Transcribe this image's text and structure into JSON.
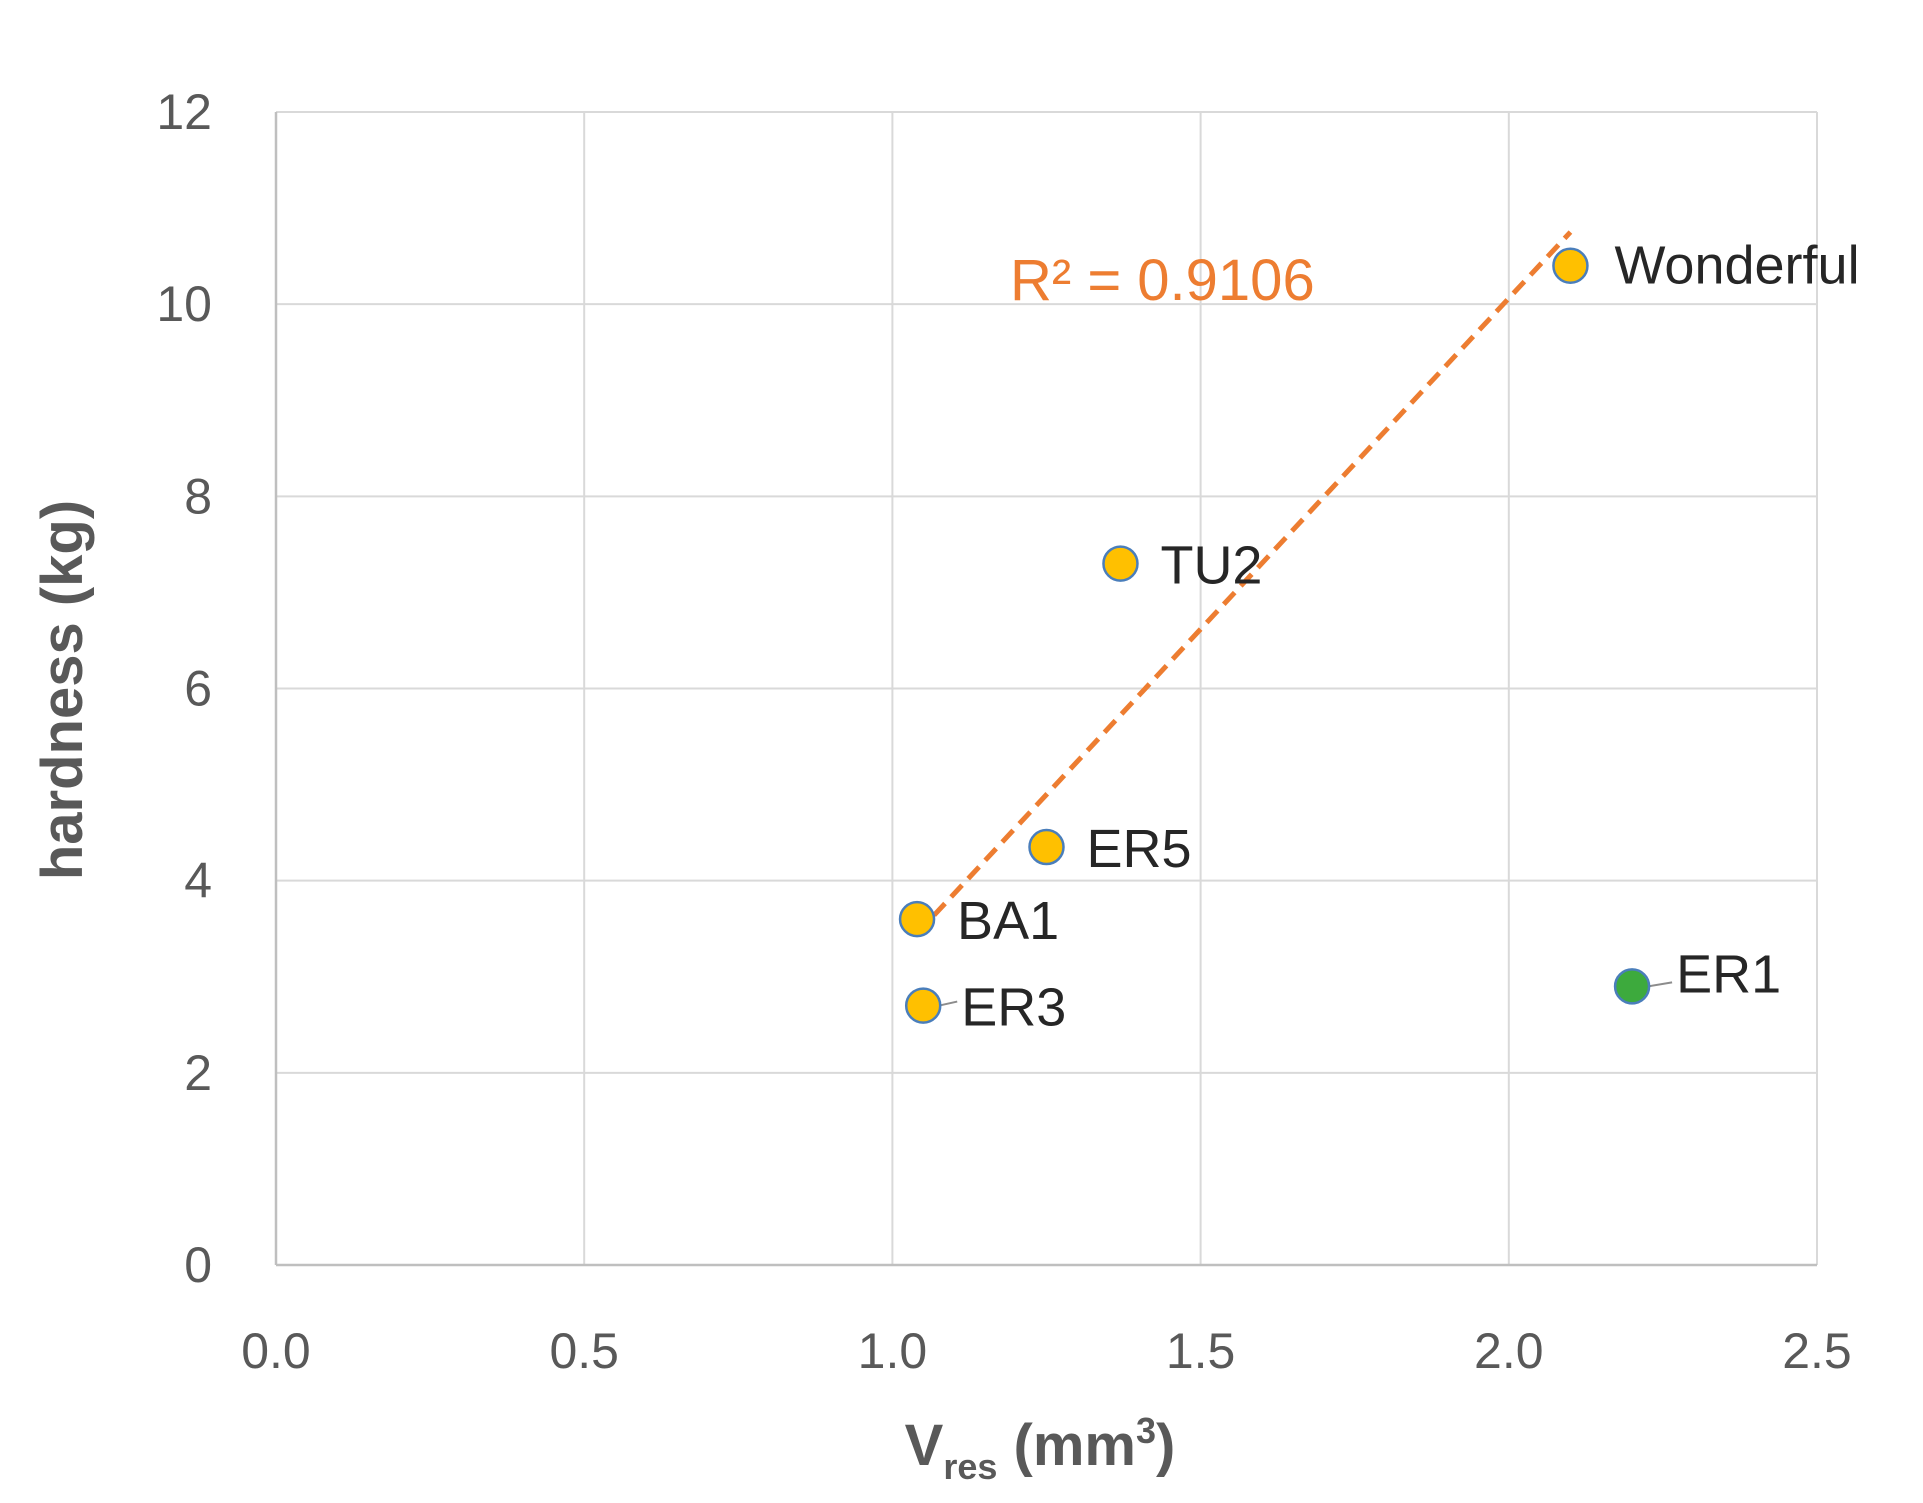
{
  "chart_data": {
    "type": "scatter",
    "title": "",
    "xlabel": {
      "main": "V",
      "sub": "res",
      "unit_pre": " (mm",
      "sup": "3",
      "unit_post": ")"
    },
    "ylabel": "hardness (kg)",
    "xlim": [
      0,
      2.5
    ],
    "ylim": [
      0,
      12
    ],
    "x_ticks": [
      0.0,
      0.5,
      1.0,
      1.5,
      2.0,
      2.5
    ],
    "x_tick_labels": [
      "0.0",
      "0.5",
      "1.0",
      "1.5",
      "2.0",
      "2.5"
    ],
    "y_ticks": [
      0,
      2,
      4,
      6,
      8,
      10,
      12
    ],
    "y_tick_labels": [
      "0",
      "2",
      "4",
      "6",
      "8",
      "10",
      "12"
    ],
    "grid": true,
    "points": [
      {
        "label": "Wonderful",
        "x": 2.1,
        "y": 10.4,
        "color": "#FFC000",
        "group": "fit"
      },
      {
        "label": "TU2",
        "x": 1.37,
        "y": 7.3,
        "color": "#FFC000",
        "group": "fit"
      },
      {
        "label": "ER5",
        "x": 1.25,
        "y": 4.35,
        "color": "#FFC000",
        "group": "fit"
      },
      {
        "label": "BA1",
        "x": 1.04,
        "y": 3.6,
        "color": "#FFC000",
        "group": "fit"
      },
      {
        "label": "ER3",
        "x": 1.05,
        "y": 2.7,
        "color": "#FFC000",
        "group": "fit"
      },
      {
        "label": "ER1",
        "x": 2.2,
        "y": 2.9,
        "color": "#3DAA3D",
        "group": "outlier"
      }
    ],
    "trendline": {
      "type": "linear",
      "x_range": [
        1.04,
        2.1
      ],
      "y_range": [
        3.45,
        10.75
      ],
      "color": "#ED7D31",
      "style": "dashed",
      "label": "R² = 0.9106"
    },
    "colors": {
      "grid": "#D9D9D9",
      "axis": "#BFBFBF",
      "marker_edge": "#4A7EBB",
      "text": "#595959"
    }
  }
}
